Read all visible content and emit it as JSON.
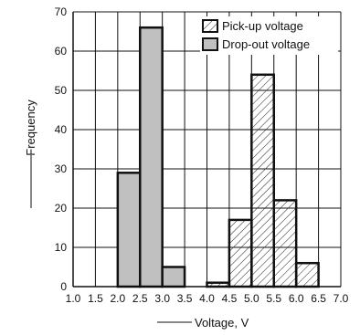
{
  "chart_data": {
    "type": "bar",
    "xlabel": "Voltage, V",
    "ylabel": "Frequency",
    "xlim": [
      1.0,
      7.0
    ],
    "ylim": [
      0,
      70
    ],
    "x_ticks": [
      "1.0",
      "1.5",
      "2.0",
      "2.5",
      "3.0",
      "3.5",
      "4.0",
      "4.5",
      "5.0",
      "5.5",
      "6.0",
      "6.5",
      "7.0"
    ],
    "y_ticks": [
      "0",
      "10",
      "20",
      "30",
      "40",
      "50",
      "60",
      "70"
    ],
    "grid": true,
    "legend_position": "top-right",
    "series": [
      {
        "name": "Pick-up voltage",
        "fill": "hatched",
        "bins": [
          {
            "x0": 4.0,
            "x1": 4.5,
            "value": 1
          },
          {
            "x0": 4.5,
            "x1": 5.0,
            "value": 17
          },
          {
            "x0": 5.0,
            "x1": 5.5,
            "value": 54
          },
          {
            "x0": 5.5,
            "x1": 6.0,
            "value": 22
          },
          {
            "x0": 6.0,
            "x1": 6.5,
            "value": 6
          }
        ]
      },
      {
        "name": "Drop-out voltage",
        "fill": "#c0c0c0",
        "bins": [
          {
            "x0": 2.0,
            "x1": 2.5,
            "value": 29
          },
          {
            "x0": 2.5,
            "x1": 3.0,
            "value": 66
          },
          {
            "x0": 3.0,
            "x1": 3.5,
            "value": 5
          }
        ]
      }
    ]
  }
}
